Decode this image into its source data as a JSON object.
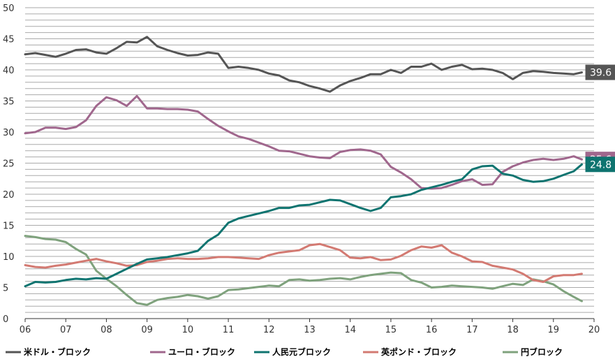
{
  "chart_data": {
    "type": "line",
    "x": [
      2006.0,
      2006.25,
      2006.5,
      2006.75,
      2007.0,
      2007.25,
      2007.5,
      2007.75,
      2008.0,
      2008.25,
      2008.5,
      2008.75,
      2009.0,
      2009.25,
      2009.5,
      2009.75,
      2010.0,
      2010.25,
      2010.5,
      2010.75,
      2011.0,
      2011.25,
      2011.5,
      2011.75,
      2012.0,
      2012.25,
      2012.5,
      2012.75,
      2013.0,
      2013.25,
      2013.5,
      2013.75,
      2014.0,
      2014.25,
      2014.5,
      2014.75,
      2015.0,
      2015.25,
      2015.5,
      2015.75,
      2016.0,
      2016.25,
      2016.5,
      2016.75,
      2017.0,
      2017.25,
      2017.5,
      2017.75,
      2018.0,
      2018.25,
      2018.5,
      2018.75,
      2019.0,
      2019.25,
      2019.5,
      2019.7
    ],
    "series": [
      {
        "name": "米ドル・ブロック",
        "color": "#555555",
        "end_label": "39.6",
        "values": [
          42.5,
          42.7,
          42.4,
          42.1,
          42.6,
          43.2,
          43.3,
          42.8,
          42.6,
          43.5,
          44.5,
          44.4,
          45.3,
          43.8,
          43.2,
          42.7,
          42.3,
          42.4,
          42.8,
          42.6,
          40.3,
          40.5,
          40.3,
          40.0,
          39.4,
          39.1,
          38.3,
          38.0,
          37.4,
          37.0,
          36.5,
          37.5,
          38.2,
          38.7,
          39.3,
          39.3,
          40.0,
          39.5,
          40.5,
          40.5,
          41.0,
          40.0,
          40.5,
          40.8,
          40.1,
          40.2,
          40.0,
          39.5,
          38.5,
          39.5,
          39.8,
          39.7,
          39.5,
          39.4,
          39.3,
          39.6
        ]
      },
      {
        "name": "ユーロ・ブロック",
        "color": "#a0678d",
        "end_label": "25.6",
        "values": [
          29.8,
          30.0,
          30.7,
          30.7,
          30.5,
          30.8,
          31.9,
          34.2,
          35.6,
          35.1,
          34.2,
          35.8,
          33.8,
          33.8,
          33.7,
          33.7,
          33.6,
          33.3,
          32.1,
          31.0,
          30.1,
          29.3,
          28.9,
          28.3,
          27.7,
          27.0,
          26.9,
          26.5,
          26.1,
          25.9,
          25.8,
          26.8,
          27.1,
          27.2,
          27.0,
          26.4,
          24.4,
          23.5,
          22.4,
          21.0,
          20.9,
          21.0,
          21.5,
          22.1,
          22.4,
          21.5,
          21.6,
          23.6,
          24.5,
          25.1,
          25.5,
          25.7,
          25.5,
          25.7,
          26.1,
          25.6
        ]
      },
      {
        "name": "人民元ブロック",
        "color": "#0f7470",
        "end_label": "24.8",
        "values": [
          5.2,
          5.9,
          5.8,
          5.9,
          6.2,
          6.4,
          6.3,
          6.5,
          6.4,
          7.2,
          8.0,
          8.8,
          9.5,
          9.7,
          9.9,
          10.2,
          10.5,
          10.9,
          12.5,
          13.5,
          15.4,
          16.1,
          16.5,
          16.9,
          17.3,
          17.8,
          17.8,
          18.2,
          18.3,
          18.7,
          19.1,
          19.0,
          18.4,
          17.8,
          17.3,
          17.8,
          19.5,
          19.7,
          20.0,
          20.7,
          21.1,
          21.5,
          22.0,
          22.4,
          24.0,
          24.5,
          24.6,
          23.3,
          23.0,
          22.3,
          22.0,
          22.1,
          22.5,
          23.1,
          23.7,
          24.8
        ]
      },
      {
        "name": "英ポンド・ブロック",
        "color": "#d37a72",
        "end_label": "",
        "values": [
          8.6,
          8.3,
          8.2,
          8.5,
          8.7,
          9.0,
          9.3,
          9.6,
          9.2,
          8.9,
          8.5,
          8.6,
          9.1,
          9.3,
          9.6,
          9.7,
          9.6,
          9.6,
          9.7,
          9.9,
          9.9,
          9.8,
          9.7,
          9.6,
          10.2,
          10.6,
          10.8,
          11.0,
          11.8,
          12.0,
          11.5,
          11.0,
          9.8,
          9.7,
          9.9,
          9.4,
          9.5,
          10.1,
          11.0,
          11.6,
          11.4,
          11.8,
          10.6,
          10.0,
          9.2,
          9.1,
          8.5,
          8.2,
          7.9,
          7.2,
          6.2,
          5.9,
          6.8,
          7.0,
          7.0,
          7.2
        ]
      },
      {
        "name": "円ブロック",
        "color": "#7fa27d",
        "end_label": "",
        "values": [
          13.3,
          13.1,
          12.8,
          12.7,
          12.3,
          11.2,
          10.3,
          7.7,
          6.4,
          5.2,
          3.8,
          2.5,
          2.2,
          3.0,
          3.3,
          3.5,
          3.8,
          3.6,
          3.2,
          3.6,
          4.6,
          4.7,
          4.9,
          5.1,
          5.3,
          5.2,
          6.2,
          6.3,
          6.1,
          6.2,
          6.4,
          6.5,
          6.3,
          6.7,
          7.0,
          7.2,
          7.4,
          7.3,
          6.2,
          5.8,
          5.0,
          5.1,
          5.3,
          5.2,
          5.1,
          5.0,
          4.8,
          5.2,
          5.6,
          5.4,
          6.3,
          6.0,
          5.5,
          4.4,
          3.5,
          2.8
        ]
      }
    ],
    "xticks": [
      2006,
      2007,
      2008,
      2009,
      2010,
      2011,
      2012,
      2013,
      2014,
      2015,
      2016,
      2017,
      2018,
      2019,
      2020
    ],
    "xtick_labels": [
      "06",
      "07",
      "08",
      "09",
      "10",
      "11",
      "12",
      "13",
      "14",
      "15",
      "16",
      "17",
      "18",
      "19",
      "20"
    ],
    "yticks": [
      0,
      5,
      10,
      15,
      20,
      25,
      30,
      35,
      40,
      45,
      50
    ],
    "xlim": [
      2006,
      2020
    ],
    "ylim": [
      0,
      50
    ],
    "grid": true,
    "legend_position": "bottom",
    "title": "",
    "xlabel": "",
    "ylabel": ""
  }
}
